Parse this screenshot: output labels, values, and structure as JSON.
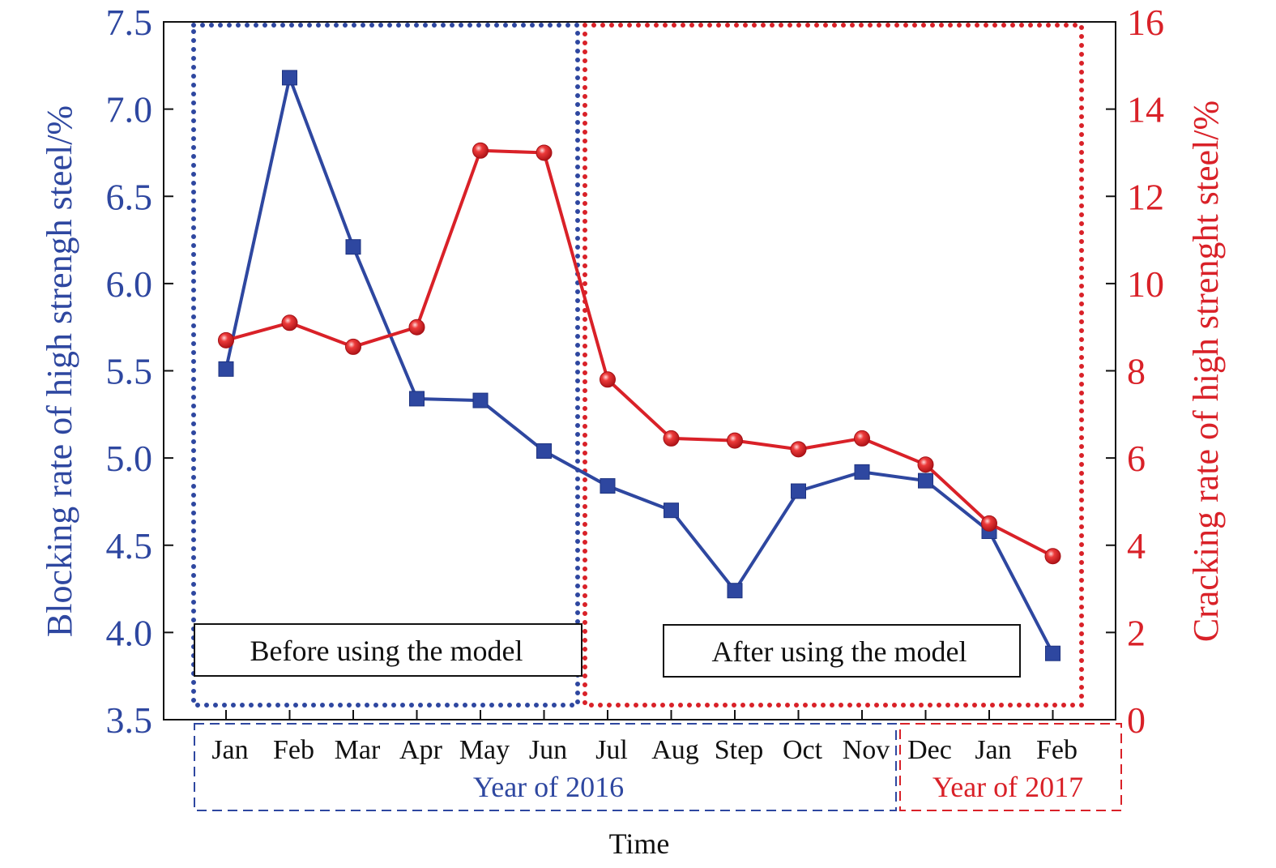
{
  "chart_data": {
    "type": "line",
    "xlabel": "Time",
    "categories": [
      "Jan",
      "Feb",
      "Mar",
      "Apr",
      "May",
      "Jun",
      "Jul",
      "Aug",
      "Step",
      "Oct",
      "Nov",
      "Dec",
      "Jan",
      "Feb"
    ],
    "year_groups": [
      {
        "label": "Year of 2016",
        "from_index": 0,
        "to_index": 10,
        "color": "#2e47a0"
      },
      {
        "label": "Year of 2017",
        "from_index": 11,
        "to_index": 13,
        "color": "#d92128"
      }
    ],
    "y_left": {
      "label": "Blocking rate of high strengh steel/%",
      "lim": [
        3.5,
        7.5
      ],
      "ticks": [
        "3.5",
        "4.0",
        "4.5",
        "5.0",
        "5.5",
        "6.0",
        "6.5",
        "7.0",
        "7.5"
      ],
      "color": "#2e47a0"
    },
    "y_right": {
      "label": "Cracking rate of high strenght steel/%",
      "lim": [
        0,
        16
      ],
      "ticks": [
        "0",
        "2",
        "4",
        "6",
        "8",
        "10",
        "12",
        "14",
        "16"
      ],
      "color": "#d92128"
    },
    "series": [
      {
        "axis": "left",
        "marker": "square",
        "color": "#2e47a0",
        "values": [
          5.51,
          7.18,
          6.21,
          5.34,
          5.33,
          5.04,
          4.84,
          4.7,
          4.24,
          4.81,
          4.92,
          4.87,
          4.58,
          3.88
        ]
      },
      {
        "axis": "right",
        "marker": "circle",
        "color": "#d92128",
        "values": [
          8.7,
          9.1,
          8.55,
          9.0,
          13.05,
          13.0,
          7.8,
          6.45,
          6.4,
          6.2,
          6.45,
          5.85,
          4.5,
          3.75
        ]
      }
    ],
    "regions": [
      {
        "label": "Before using the model",
        "from_index": 0,
        "to_index": 5,
        "color": "#2e47a0"
      },
      {
        "label": "After using the model",
        "from_index": 6,
        "to_index": 13,
        "color": "#d92128"
      }
    ]
  }
}
